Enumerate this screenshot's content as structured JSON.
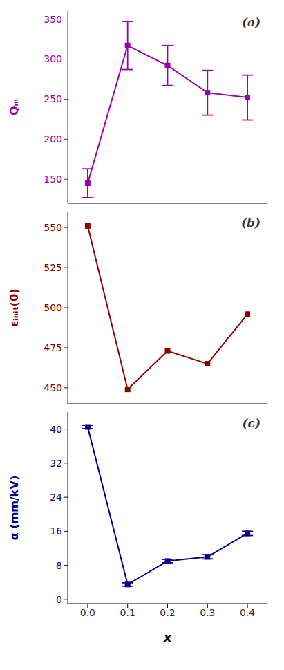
{
  "chart_data": [
    {
      "type": "line",
      "x": [
        0.0,
        0.1,
        0.2,
        0.3,
        0.4
      ],
      "values": [
        145,
        317,
        292,
        258,
        252
      ],
      "yerr": [
        18,
        30,
        25,
        28,
        28
      ],
      "color": "#9900AA",
      "marker": "square",
      "ylabel": "Qₘ",
      "ylim": [
        120,
        360
      ],
      "yticks": [
        150,
        200,
        250,
        300,
        350
      ],
      "xlim": [
        -0.05,
        0.45
      ],
      "xticks": [
        {
          "value": 0.0,
          "label": "0.0"
        },
        0.1,
        0.2,
        0.3,
        0.4
      ],
      "tick_labels": "y",
      "annotation": "(a)"
    },
    {
      "type": "line",
      "x": [
        0.0,
        0.1,
        0.2,
        0.3,
        0.4
      ],
      "values": [
        551,
        449,
        473,
        465,
        496
      ],
      "color": "#8B0000",
      "marker": "square",
      "ylabel": "εᵢₙᵢₜ(0)",
      "ylim": [
        440,
        560
      ],
      "yticks": [
        450,
        475,
        500,
        525,
        550
      ],
      "xlim": [
        -0.05,
        0.45
      ],
      "xticks": [
        {
          "value": 0.0,
          "label": "0.0"
        },
        0.1,
        0.2,
        0.3,
        0.4
      ],
      "tick_labels": "y",
      "annotation": "(b)"
    },
    {
      "type": "line",
      "x": [
        0.0,
        0.1,
        0.2,
        0.3,
        0.4
      ],
      "values": [
        40.5,
        3.5,
        9.0,
        10.0,
        15.5
      ],
      "yerr_neg": [
        0.4,
        0.4,
        0.4,
        0.5,
        0.5
      ],
      "yerr_pos": [
        0.4,
        0.4,
        0.4,
        0.5,
        0.5
      ],
      "color": "#00008B",
      "marker": "square",
      "ylabel": "α (mm/kV)",
      "xlabel": "x",
      "ylim": [
        -1,
        44
      ],
      "yticks": [
        0,
        8,
        16,
        24,
        32,
        40
      ],
      "xlim": [
        -0.05,
        0.45
      ],
      "xticks": [
        {
          "value": 0.0,
          "label": "0.0"
        },
        0.1,
        0.2,
        0.3,
        0.4
      ],
      "annotation": "(c)"
    }
  ]
}
